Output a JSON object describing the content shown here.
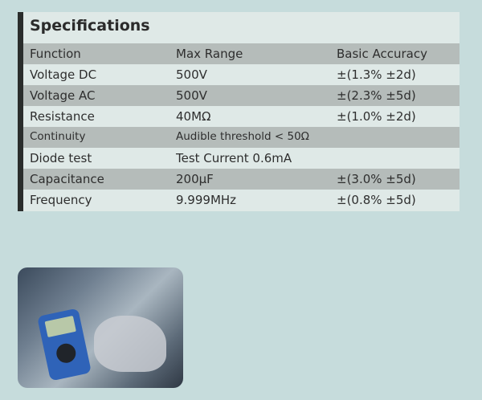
{
  "title": "Specifications",
  "table": {
    "headers": [
      "Function",
      "Max Range",
      "Basic Accuracy"
    ],
    "rows": [
      [
        "Voltage DC",
        "500V",
        "±(1.3% ±2d)"
      ],
      [
        "Voltage AC",
        "500V",
        "±(2.3% ±5d)"
      ],
      [
        "Resistance",
        "40MΩ",
        "±(1.0% ±2d)"
      ],
      [
        "Continuity",
        "Audible threshold < 50Ω",
        ""
      ],
      [
        "Diode test",
        "Test Current 0.6mA",
        ""
      ],
      [
        "Capacitance",
        "200µF",
        "±(3.0% ±5d)"
      ],
      [
        "Frequency",
        "9.999MHz",
        "±(0.8% ±5d)"
      ]
    ]
  },
  "colors": {
    "background": "#c6dcdc",
    "panel": "#dfe9e7",
    "stripe": "#b5bcba",
    "accent_bar": "#2a2d2c"
  }
}
